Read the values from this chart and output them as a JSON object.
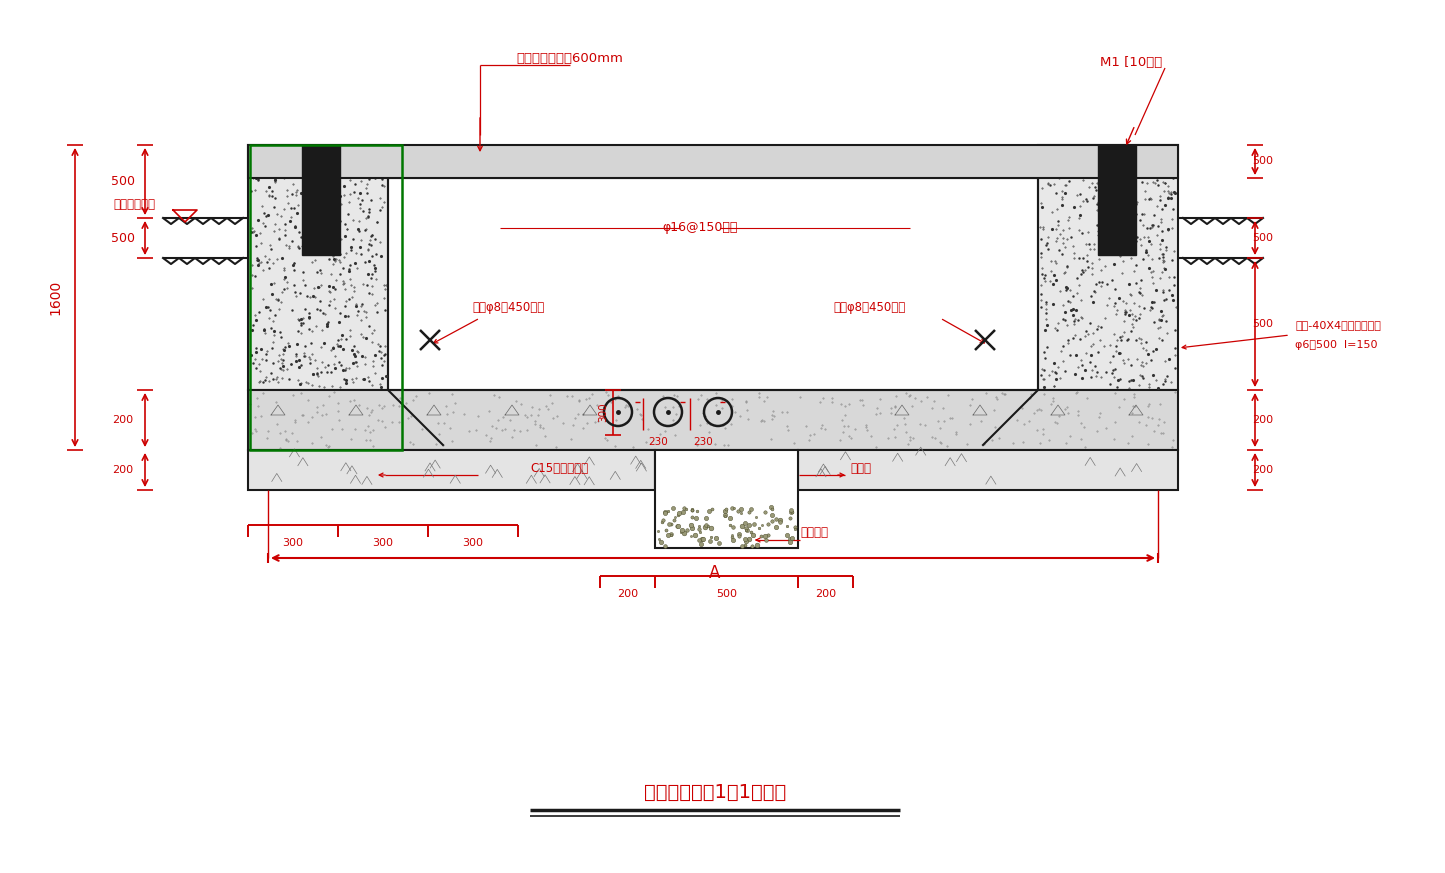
{
  "title": "预装式变电站1－1剑面图",
  "bg_color": "#ffffff",
  "drawing_color": "#1a1a1a",
  "red_color": "#cc0000",
  "green_color": "#007700",
  "top_label": "操作走廊不小于600mm",
  "top_right_label": "M1 [10槽鉢",
  "phi16_label": "φ16@150双向",
  "lajin_left": "拉筋φ8＠450双向",
  "lajin_right": "拉筋φ8＠450双向",
  "c15_label": "C15混凝土垫层",
  "jishukeng": "集水坑",
  "bishi": "碎石垫层",
  "right_annot1": "通长-40X4扁铁四周预埋",
  "right_annot2": "φ6＠500  l=150",
  "shiwai": "室外设计标高"
}
